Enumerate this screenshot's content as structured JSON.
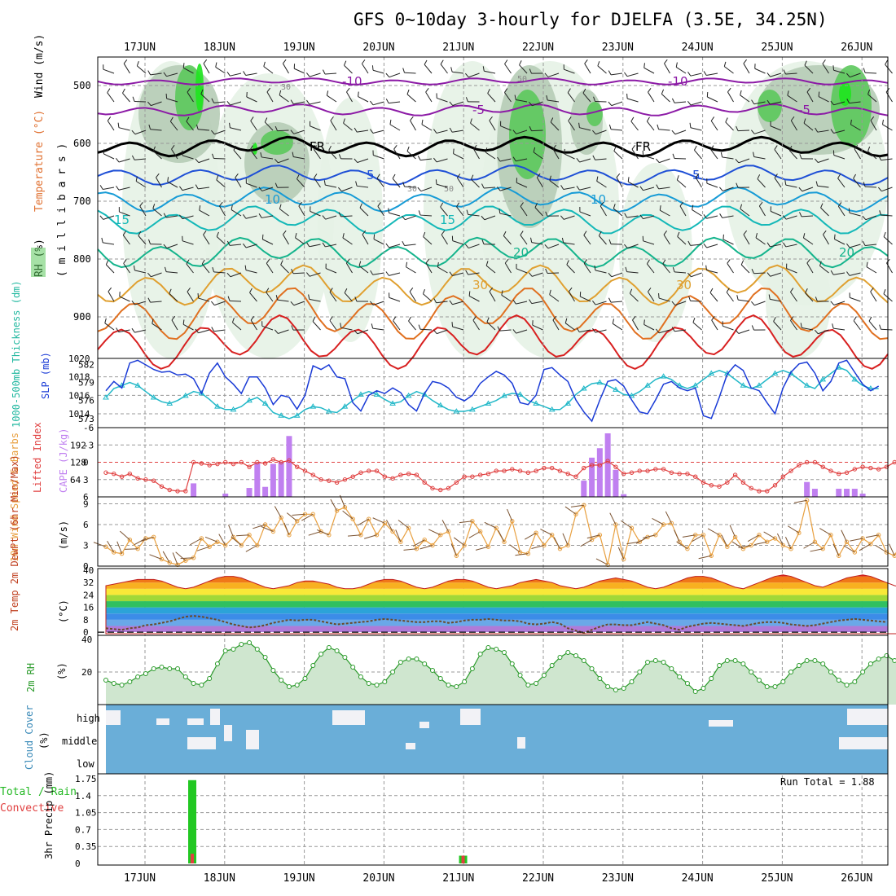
{
  "title": "GFS 0~10day 3-hourly for DJELFA (3.5E, 34.25N)",
  "dates": [
    "17JUN",
    "18JUN",
    "19JUN",
    "20JUN",
    "21JUN",
    "22JUN",
    "23JUN",
    "24JUN",
    "25JUN",
    "26JUN"
  ],
  "panels": {
    "upper": {
      "ylabel_parts": [
        "RH (%)",
        "Temperature (°C)",
        "Wind (m/s)"
      ],
      "yunit": "( m i l l i b a r s )",
      "pressure_ticks": [
        "500",
        "600",
        "700",
        "800",
        "900"
      ],
      "labels": {
        "fr": "FR",
        "m10": "-10",
        "m5": "-5",
        "p5": "5",
        "p10": "10",
        "p15": "15",
        "p20": "20",
        "p30": "30",
        "rh30": "30",
        "rh50": "50"
      },
      "colors": {
        "rh_light": "#e6f2e6",
        "rh_mid": "#b6ccb6",
        "rh_dark": "#5cc85c",
        "rh_high": "#1ee61e"
      }
    },
    "slp": {
      "ylabel_left": "1000-500mb Thickness (dm)",
      "ylabel_right": "SLP (mb)",
      "thickness_ticks": [
        "582",
        "579",
        "576",
        "573"
      ],
      "slp_ticks": [
        "1020",
        "1018",
        "1016",
        "1014"
      ]
    },
    "cape": {
      "ylabel_left": "Lifted Index",
      "ylabel_right": "CAPE (J/kg)",
      "li_ticks": [
        "-6",
        "-3",
        "0",
        "3",
        "6"
      ],
      "cape_ticks": [
        "192",
        "128",
        "64"
      ]
    },
    "wind10": {
      "ylabel": "10m Wind Speed & Barbs",
      "yunit": "(m/s)",
      "ticks": [
        "9",
        "6",
        "3",
        "0"
      ]
    },
    "temp2m": {
      "ylabel": "2m Temp 2m DewPt (6hr Min/Max)",
      "yunit": "(°C)",
      "ticks": [
        "40",
        "32",
        "24",
        "16",
        "8",
        "0"
      ]
    },
    "rh2m": {
      "ylabel": "2m RH",
      "yunit": "(%)",
      "ticks": [
        "40",
        "20"
      ]
    },
    "cloud": {
      "ylabel": "Cloud Cover",
      "yunit": "(%)",
      "levels": [
        "high",
        "middle",
        "low"
      ]
    },
    "precip": {
      "ylabel_left": "Total / Rain",
      "ylabel_left2": "Convective",
      "ylabel": "3hr Precip (mm)",
      "ticks": [
        "1.75",
        "1.4",
        "1.05",
        "0.7",
        "0.35",
        "0"
      ],
      "run_total": "Run Total = 1.88"
    }
  },
  "chart_data": [
    {
      "type": "line",
      "name": "thickness_slp",
      "x_unit": "3-hourly steps from 16JUN 12Z",
      "series": [
        {
          "name": "SLP (mb)",
          "values": [
            1016.5,
            1017.5,
            1016.8,
            1019.5,
            1019.8,
            1019.3,
            1018.8,
            1018.5,
            1018.6,
            1018.2,
            1018.3,
            1017.8,
            1016.2,
            1018.4,
            1019.5,
            1018.0,
            1017.2,
            1016.2,
            1018.0,
            1018.0,
            1016.8,
            1015.0,
            1016.0,
            1015.8,
            1014.5,
            1016.0,
            1019.2,
            1018.8,
            1019.3,
            1018.0,
            1017.8,
            1015.2,
            1014.3,
            1016.0,
            1016.5,
            1016.2,
            1016.8,
            1016.3,
            1015.0,
            1014.3,
            1016.2,
            1017.5,
            1017.3,
            1016.8,
            1015.8,
            1015.4,
            1016.0,
            1017.3,
            1018.0,
            1018.6,
            1018.2,
            1017.3,
            1015.2,
            1015.0,
            1016.0,
            1018.8,
            1019.0,
            1018.2,
            1017.5,
            1015.5,
            1014.2,
            1013.2,
            1015.5,
            1017.5,
            1017.7,
            1017.0,
            1015.5,
            1014.2,
            1014.0,
            1015.5,
            1017.2,
            1017.5,
            1016.8,
            1016.5,
            1016.8,
            1013.8,
            1013.5,
            1015.8,
            1018.3,
            1019.3,
            1018.7,
            1016.8,
            1016.5,
            1015.2,
            1014.0,
            1016.8,
            1018.5,
            1019.4,
            1019.6,
            1018.4,
            1016.5,
            1017.5,
            1019.5,
            1019.8,
            1018.5,
            1017.2,
            1016.5,
            1017.0
          ]
        },
        {
          "name": "Thickness (dm)",
          "values": [
            576.5,
            578.0,
            578.5,
            579.0,
            578.5,
            577.5,
            576.5,
            575.8,
            575.5,
            576.0,
            576.8,
            577.5,
            577.2,
            576.2,
            575.0,
            574.5,
            574.5,
            575.0,
            576.0,
            576.5,
            575.5,
            574.0,
            573.5,
            573.0,
            573.5,
            574.5,
            575.0,
            574.8,
            574.2,
            574.0,
            575.0,
            576.0,
            577.0,
            577.5,
            577.0,
            576.2,
            575.5,
            575.8,
            576.8,
            577.5,
            577.0,
            576.0,
            575.2,
            574.5,
            574.2,
            574.2,
            574.5,
            575.0,
            575.5,
            576.0,
            576.8,
            577.2,
            577.0,
            576.0,
            575.5,
            575.0,
            574.5,
            574.5,
            575.5,
            577.0,
            578.0,
            578.8,
            579.0,
            578.5,
            577.8,
            577.0,
            576.8,
            577.5,
            578.5,
            579.5,
            580.0,
            579.5,
            578.5,
            578.0,
            578.5,
            579.5,
            580.5,
            581.0,
            580.5,
            579.5,
            578.5,
            578.0,
            578.5,
            579.5,
            580.5,
            581.0,
            580.5,
            579.5,
            578.5,
            578.0,
            579.5,
            580.5,
            581.5,
            581.0,
            579.5,
            578.5,
            578.0,
            578.0
          ]
        }
      ],
      "ylim_slp": [
        1012.5,
        1020
      ],
      "ylim_thickness": [
        571.5,
        583
      ]
    },
    {
      "type": "bar",
      "name": "cape_li",
      "x_unit": "3-hourly steps from 16JUN 12Z",
      "series": [
        {
          "name": "CAPE (J/kg)",
          "values": [
            0,
            0,
            0,
            0,
            0,
            0,
            0,
            0,
            0,
            0,
            0,
            50,
            0,
            0,
            0,
            12,
            0,
            0,
            33,
            125,
            37,
            122,
            130,
            225,
            0,
            0,
            0,
            0,
            0,
            0,
            0,
            0,
            0,
            0,
            0,
            0,
            0,
            0,
            0,
            0,
            0,
            0,
            0,
            0,
            0,
            0,
            0,
            0,
            0,
            0,
            0,
            0,
            0,
            0,
            0,
            0,
            0,
            0,
            0,
            0,
            60,
            145,
            180,
            235,
            100,
            10,
            0,
            0,
            0,
            0,
            0,
            0,
            0,
            0,
            0,
            0,
            0,
            0,
            0,
            0,
            0,
            0,
            0,
            0,
            0,
            0,
            0,
            0,
            55,
            30,
            0,
            0,
            30,
            30,
            30,
            12,
            0,
            0,
            0,
            0,
            0,
            0,
            0
          ]
        },
        {
          "name": "Lifted Index",
          "values": [
            1.8,
            2.0,
            2.5,
            2.0,
            2.8,
            3.0,
            3.2,
            4.2,
            4.8,
            5.0,
            5.0,
            0.0,
            0.2,
            0.5,
            0.3,
            0.0,
            0.3,
            0.0,
            0.8,
            0.0,
            0.2,
            -0.5,
            0.0,
            -0.3,
            0.8,
            1.5,
            2.2,
            3.0,
            3.2,
            3.5,
            3.0,
            2.5,
            1.8,
            1.5,
            1.5,
            2.5,
            2.8,
            2.2,
            2.0,
            2.2,
            3.5,
            4.5,
            4.8,
            4.5,
            3.5,
            2.5,
            2.5,
            2.2,
            2.0,
            1.5,
            1.5,
            1.2,
            1.5,
            1.8,
            1.5,
            1.0,
            1.0,
            1.5,
            2.0,
            2.5,
            1.0,
            0.5,
            0.5,
            -0.2,
            0.8,
            2.0,
            1.8,
            1.5,
            1.5,
            1.2,
            1.2,
            1.8,
            2.0,
            2.0,
            2.5,
            3.5,
            4.0,
            4.2,
            3.5,
            2.2,
            3.5,
            4.5,
            5.0,
            5.0,
            4.0,
            2.5,
            1.5,
            0.5,
            0.0,
            0.0,
            0.8,
            1.5,
            2.0,
            1.8,
            1.2,
            0.8,
            1.0,
            1.2,
            0.8,
            0.0,
            0.0,
            0.2,
            0.0
          ]
        }
      ],
      "ylim_li": [
        6,
        -6
      ],
      "ylim_cape": [
        0,
        256
      ]
    },
    {
      "type": "line",
      "name": "wind10m_speed",
      "x_unit": "3-hourly steps from 16JUN 12Z",
      "series": [
        {
          "name": "10m Wind Speed (m/s)",
          "values": [
            2.8,
            2.0,
            1.8,
            3.8,
            2.5,
            4.0,
            4.2,
            1.0,
            0.5,
            0.2,
            0.8,
            1.2,
            4.0,
            2.8,
            3.5,
            3.0,
            4.2,
            3.0,
            4.5,
            3.0,
            6.0,
            5.0,
            7.0,
            4.5,
            6.5,
            7.5,
            7.5,
            5.0,
            4.5,
            8.0,
            8.5,
            6.8,
            4.5,
            6.8,
            4.5,
            6.2,
            5.0,
            3.5,
            5.5,
            2.5,
            3.8,
            3.0,
            4.5,
            5.0,
            1.5,
            3.0,
            6.5,
            5.0,
            2.8,
            5.5,
            3.5,
            6.5,
            2.0,
            1.8,
            4.8,
            3.0,
            4.5,
            2.5,
            3.0,
            7.5,
            8.8,
            3.8,
            4.5,
            0.2,
            6.0,
            1.0,
            5.5,
            3.5,
            4.2,
            4.5,
            6.0,
            6.2,
            3.5,
            2.5,
            4.5,
            4.5,
            1.5,
            4.5,
            2.8,
            4.2,
            2.5,
            3.0,
            4.5,
            3.5,
            4.0,
            3.0,
            2.5,
            4.8,
            9.5,
            3.5,
            2.5,
            4.5,
            1.5,
            3.5,
            2.0,
            4.0,
            3.2,
            4.5,
            2.0,
            1.5,
            3.8,
            5.5,
            5.0,
            3.5,
            3.0,
            3.2,
            7.0,
            1.5,
            0.2
          ]
        }
      ],
      "ylim": [
        0,
        10
      ]
    },
    {
      "type": "line",
      "name": "temp2m",
      "x_unit": "3-hourly steps from 16JUN 12Z",
      "series": [
        {
          "name": "2m Temp (°C)",
          "values": [
            30,
            31,
            32,
            33,
            34,
            34,
            34,
            33,
            31,
            29,
            28,
            29,
            31,
            33,
            35,
            36,
            36,
            35,
            33,
            31,
            29,
            28,
            29,
            30,
            32,
            33,
            33,
            32,
            31,
            29,
            28,
            28,
            29,
            31,
            33,
            34,
            34,
            33,
            31,
            29,
            28,
            29,
            31,
            33,
            34,
            34,
            33,
            31,
            29,
            28,
            29,
            30,
            32,
            33,
            34,
            33,
            32,
            30,
            29,
            28,
            29,
            31,
            33,
            34,
            35,
            34,
            33,
            31,
            29,
            28,
            29,
            31,
            33,
            35,
            36,
            36,
            35,
            33,
            31,
            29,
            28,
            30,
            32,
            34,
            36,
            37,
            36,
            34,
            32,
            30,
            29,
            31,
            33,
            35,
            36,
            37,
            36,
            34,
            32,
            30,
            29,
            28,
            28
          ]
        },
        {
          "name": "2m DewPt (°C)",
          "values": [
            2.5,
            2.0,
            1.5,
            2.5,
            3.0,
            4.5,
            5.0,
            6.0,
            7.0,
            8.5,
            10.0,
            10.5,
            10.0,
            9.0,
            8.0,
            6.5,
            5.0,
            4.0,
            3.0,
            3.5,
            4.5,
            6.0,
            7.0,
            8.0,
            7.5,
            8.0,
            8.0,
            7.0,
            6.0,
            5.0,
            5.5,
            6.0,
            6.5,
            7.0,
            8.0,
            8.5,
            8.0,
            7.5,
            7.0,
            6.5,
            6.5,
            7.0,
            7.0,
            6.0,
            6.5,
            7.5,
            8.0,
            8.0,
            8.5,
            8.0,
            7.5,
            7.5,
            7.0,
            5.5,
            5.0,
            5.5,
            6.5,
            5.5,
            2.5,
            1.0,
            -0.5,
            1.5,
            3.5,
            5.0,
            5.0,
            4.5,
            4.5,
            5.5,
            6.5,
            5.5,
            4.5,
            2.5,
            1.5,
            3.5,
            4.5,
            5.5,
            6.0,
            5.5,
            5.0,
            4.5,
            4.0,
            5.0,
            6.0,
            6.5,
            6.5,
            6.0,
            5.0,
            4.5,
            4.0,
            4.5,
            5.5,
            6.5,
            7.5,
            8.0,
            8.5,
            8.0,
            7.5,
            7.0,
            6.5
          ]
        }
      ],
      "ylim": [
        -1,
        40
      ]
    },
    {
      "type": "line",
      "name": "rh2m",
      "x_unit": "3-hourly steps from 16JUN 12Z",
      "series": [
        {
          "name": "2m RH (%)",
          "values": [
            15,
            13,
            12,
            14,
            17,
            19,
            22,
            23,
            22,
            22,
            17,
            13,
            12,
            16,
            25,
            33,
            34,
            37,
            38,
            34,
            29,
            21,
            15,
            11,
            12,
            16,
            24,
            31,
            35,
            33,
            29,
            23,
            17,
            13,
            12,
            14,
            20,
            26,
            28,
            28,
            25,
            21,
            16,
            12,
            11,
            14,
            22,
            31,
            35,
            34,
            32,
            25,
            18,
            12,
            13,
            18,
            24,
            29,
            32,
            30,
            27,
            22,
            16,
            11,
            9,
            10,
            14,
            20,
            26,
            27,
            26,
            22,
            17,
            13,
            8,
            10,
            16,
            24,
            27,
            27,
            25,
            20,
            15,
            11,
            11,
            14,
            20,
            24,
            27,
            27,
            25,
            20,
            15,
            12,
            14,
            20,
            25,
            28,
            30,
            27,
            24,
            18
          ]
        }
      ],
      "ylim": [
        0,
        40
      ]
    },
    {
      "type": "bar",
      "name": "precip3hr",
      "x_unit": "3-hourly steps from 16JUN 12Z",
      "series": [
        {
          "name": "Total (mm)",
          "bars": [
            {
              "step": 9,
              "value": 1.72
            },
            {
              "step": 43,
              "value": 0.16
            }
          ]
        },
        {
          "name": "Convective (mm)",
          "bars": [
            {
              "step": 9,
              "value": 0.2
            },
            {
              "step": 43,
              "value": 0.16
            }
          ]
        }
      ],
      "ylim": [
        0,
        1.75
      ]
    }
  ]
}
